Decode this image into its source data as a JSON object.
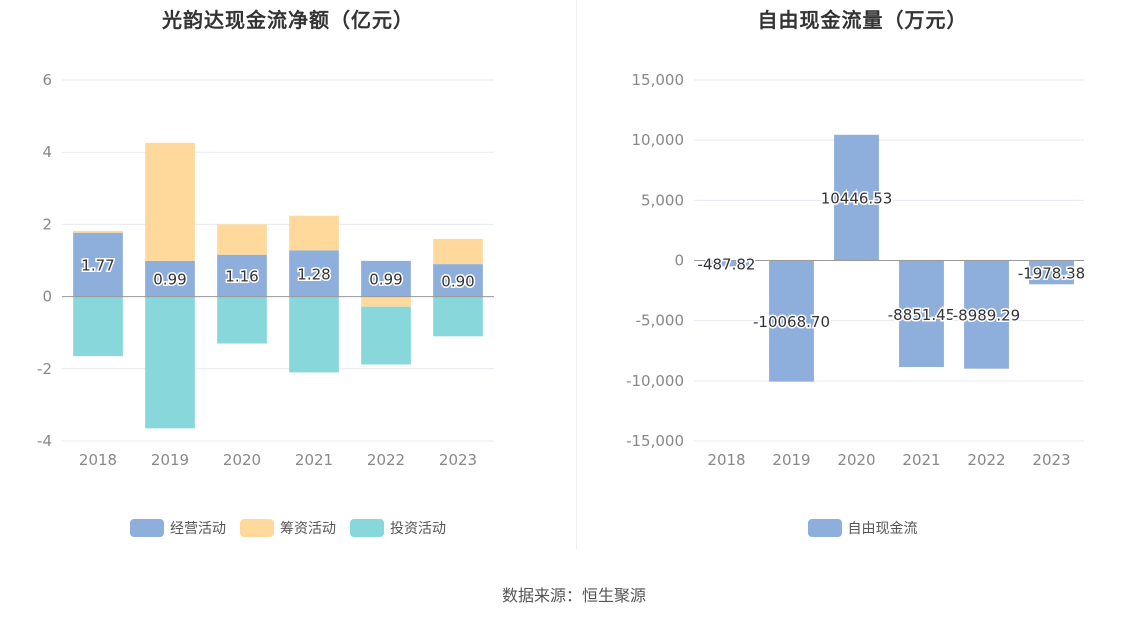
{
  "source_note": "数据来源：恒生聚源",
  "chart_data": [
    {
      "type": "bar",
      "stacked": true,
      "title": "光韵达现金流净额（亿元）",
      "categories": [
        "2018",
        "2019",
        "2020",
        "2021",
        "2022",
        "2023"
      ],
      "ylim": [
        -4,
        6
      ],
      "yticks": [
        -4,
        -2,
        0,
        2,
        4,
        6
      ],
      "grid": true,
      "legend_position": "bottom",
      "series": [
        {
          "name": "经营活动",
          "color": "#8eaedc",
          "values": [
            1.77,
            0.99,
            1.16,
            1.28,
            0.99,
            0.9
          ],
          "labels": [
            "1.77",
            "0.99",
            "1.16",
            "1.28",
            "0.99",
            "0.90"
          ]
        },
        {
          "name": "筹资活动",
          "color": "#ffd99b",
          "values": [
            0.05,
            3.27,
            0.84,
            0.96,
            -0.28,
            0.7
          ]
        },
        {
          "name": "投资活动",
          "color": "#88d7da",
          "values": [
            -1.65,
            -3.65,
            -1.3,
            -2.1,
            -1.6,
            -1.1
          ]
        }
      ]
    },
    {
      "type": "bar",
      "title": "自由现金流量（万元）",
      "categories": [
        "2018",
        "2019",
        "2020",
        "2021",
        "2022",
        "2023"
      ],
      "ylim": [
        -15000,
        15000
      ],
      "yticks": [
        -15000,
        -10000,
        -5000,
        0,
        5000,
        10000,
        15000
      ],
      "ytick_labels": [
        "-15,000",
        "-10,000",
        "-5,000",
        "0",
        "5,000",
        "10,000",
        "15,000"
      ],
      "grid": true,
      "legend_position": "bottom",
      "series": [
        {
          "name": "自由现金流",
          "color": "#8eaedc",
          "values": [
            -487.82,
            -10068.7,
            10446.53,
            -8851.45,
            -8989.29,
            -1978.38
          ],
          "labels": [
            "-487.82",
            "-10068.70",
            "10446.53",
            "-8851.45",
            "-8989.29",
            "-1978.38"
          ]
        }
      ]
    }
  ]
}
